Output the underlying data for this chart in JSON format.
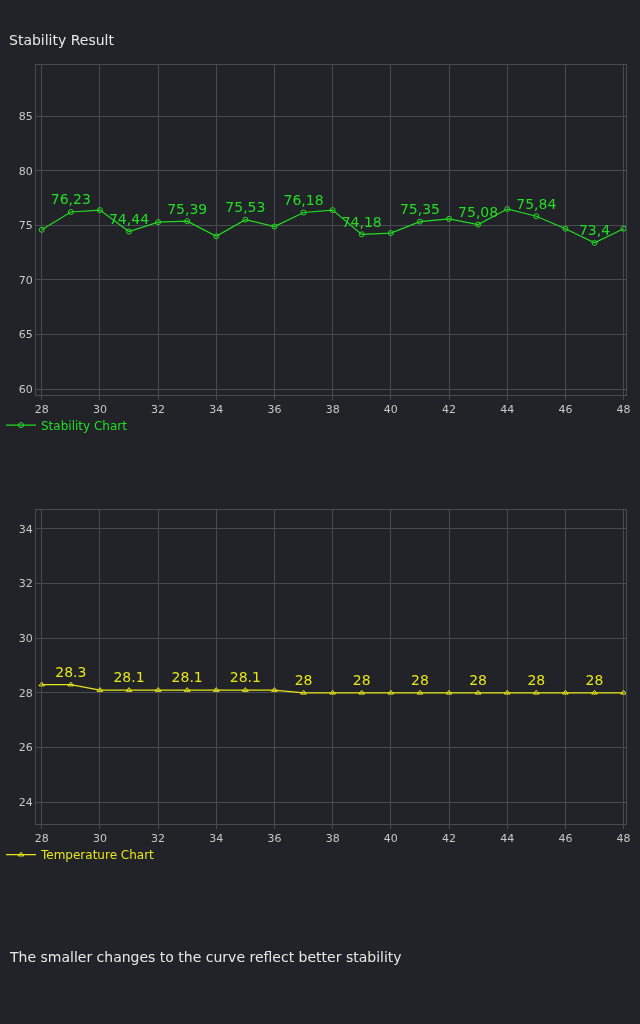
{
  "chart_data": [
    {
      "type": "line",
      "title": "Stability Result",
      "x": [
        28,
        29,
        30,
        31,
        32,
        33,
        34,
        35,
        36,
        37,
        38,
        39,
        40,
        41,
        42,
        43,
        44,
        45,
        46,
        47,
        48
      ],
      "series": [
        {
          "name": "Stability Chart",
          "color": "#22dd22",
          "marker": "circle",
          "values": [
            74.6,
            76.23,
            76.4,
            74.44,
            75.3,
            75.39,
            74.0,
            75.53,
            74.9,
            76.18,
            76.4,
            74.18,
            74.3,
            75.35,
            75.6,
            75.08,
            76.5,
            75.84,
            74.7,
            73.4,
            74.7
          ],
          "value_labels": [
            null,
            "76,23",
            null,
            "74,44",
            null,
            "75,39",
            null,
            "75,53",
            null,
            "76,18",
            null,
            "74,18",
            null,
            "75,35",
            null,
            "75,08",
            null,
            "75,84",
            null,
            "73,4",
            null
          ]
        }
      ],
      "xlim": [
        27.8,
        48.1
      ],
      "xticks": [
        28,
        30,
        32,
        34,
        36,
        38,
        40,
        42,
        44,
        46,
        48
      ],
      "ylim": [
        59.5,
        89.7
      ],
      "yticks": [
        60,
        65,
        70,
        75,
        80,
        85
      ],
      "grid": true,
      "legend": "bottom left"
    },
    {
      "type": "line",
      "x": [
        28,
        29,
        30,
        31,
        32,
        33,
        34,
        35,
        36,
        37,
        38,
        39,
        40,
        41,
        42,
        43,
        44,
        45,
        46,
        47,
        48
      ],
      "series": [
        {
          "name": "Temperature Chart",
          "color": "#e6e619",
          "marker": "triangle",
          "values": [
            28.3,
            28.3,
            28.1,
            28.1,
            28.1,
            28.1,
            28.1,
            28.1,
            28.1,
            28,
            28,
            28,
            28,
            28,
            28,
            28,
            28,
            28,
            28,
            28,
            28
          ],
          "value_labels": [
            null,
            "28.3",
            null,
            "28.1",
            null,
            "28.1",
            null,
            "28.1",
            null,
            "28",
            null,
            "28",
            null,
            "28",
            null,
            "28",
            null,
            "28",
            null,
            "28",
            null
          ]
        }
      ],
      "xlim": [
        27.8,
        48.1
      ],
      "xticks": [
        28,
        30,
        32,
        34,
        36,
        38,
        40,
        42,
        44,
        46,
        48
      ],
      "ylim": [
        23.2,
        34.7
      ],
      "yticks": [
        24,
        26,
        28,
        30,
        32,
        34
      ],
      "grid": true,
      "legend": "bottom left",
      "annotations": [
        "The smaller changes to the curve reflect better stability"
      ]
    }
  ]
}
